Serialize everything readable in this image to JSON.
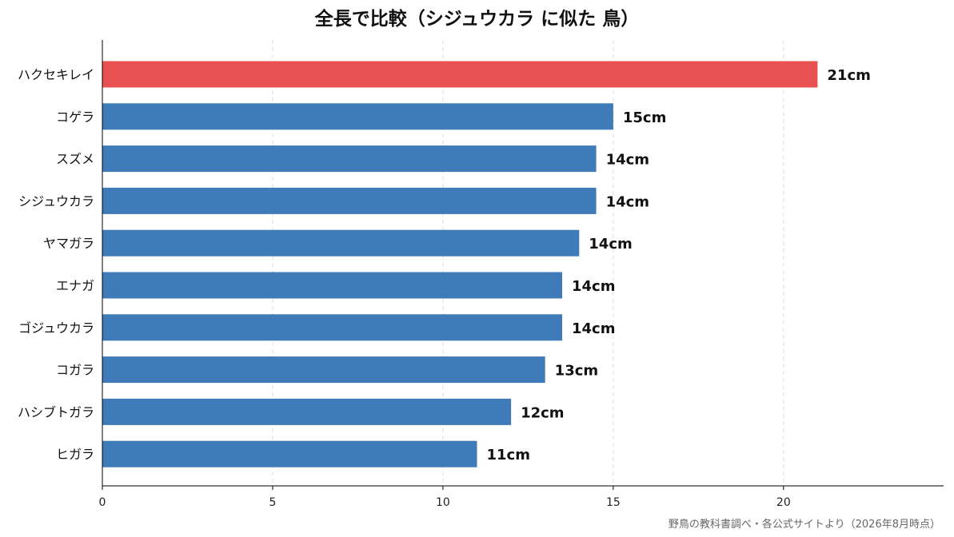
{
  "chart_data": {
    "type": "bar",
    "orientation": "horizontal",
    "title": "全長で比較（シジュウカラ に似た 鳥）",
    "source": "野鳥の教科書調べ・各公式サイトより（2026年8月時点）",
    "categories": [
      "ハクセキレイ",
      "コゲラ",
      "スズメ",
      "シジュウカラ",
      "ヤマガラ",
      "エナガ",
      "ゴジュウカラ",
      "コガラ",
      "ハシブトガラ",
      "ヒガラ"
    ],
    "values": [
      21,
      15,
      14.5,
      14.5,
      14,
      13.5,
      13.5,
      13,
      12,
      11
    ],
    "value_labels": [
      "21cm",
      "15cm",
      "14cm",
      "14cm",
      "14cm",
      "14cm",
      "14cm",
      "13cm",
      "12cm",
      "11cm"
    ],
    "highlight_index": 0,
    "colors": {
      "bar": "#3f7bb8",
      "highlight": "#e85152",
      "grid": "#dddddd",
      "axis": "#000000"
    },
    "xticks": [
      0,
      5,
      10,
      15,
      20
    ],
    "xlim": [
      0,
      24.7
    ],
    "grid": "vertical-dashed"
  }
}
